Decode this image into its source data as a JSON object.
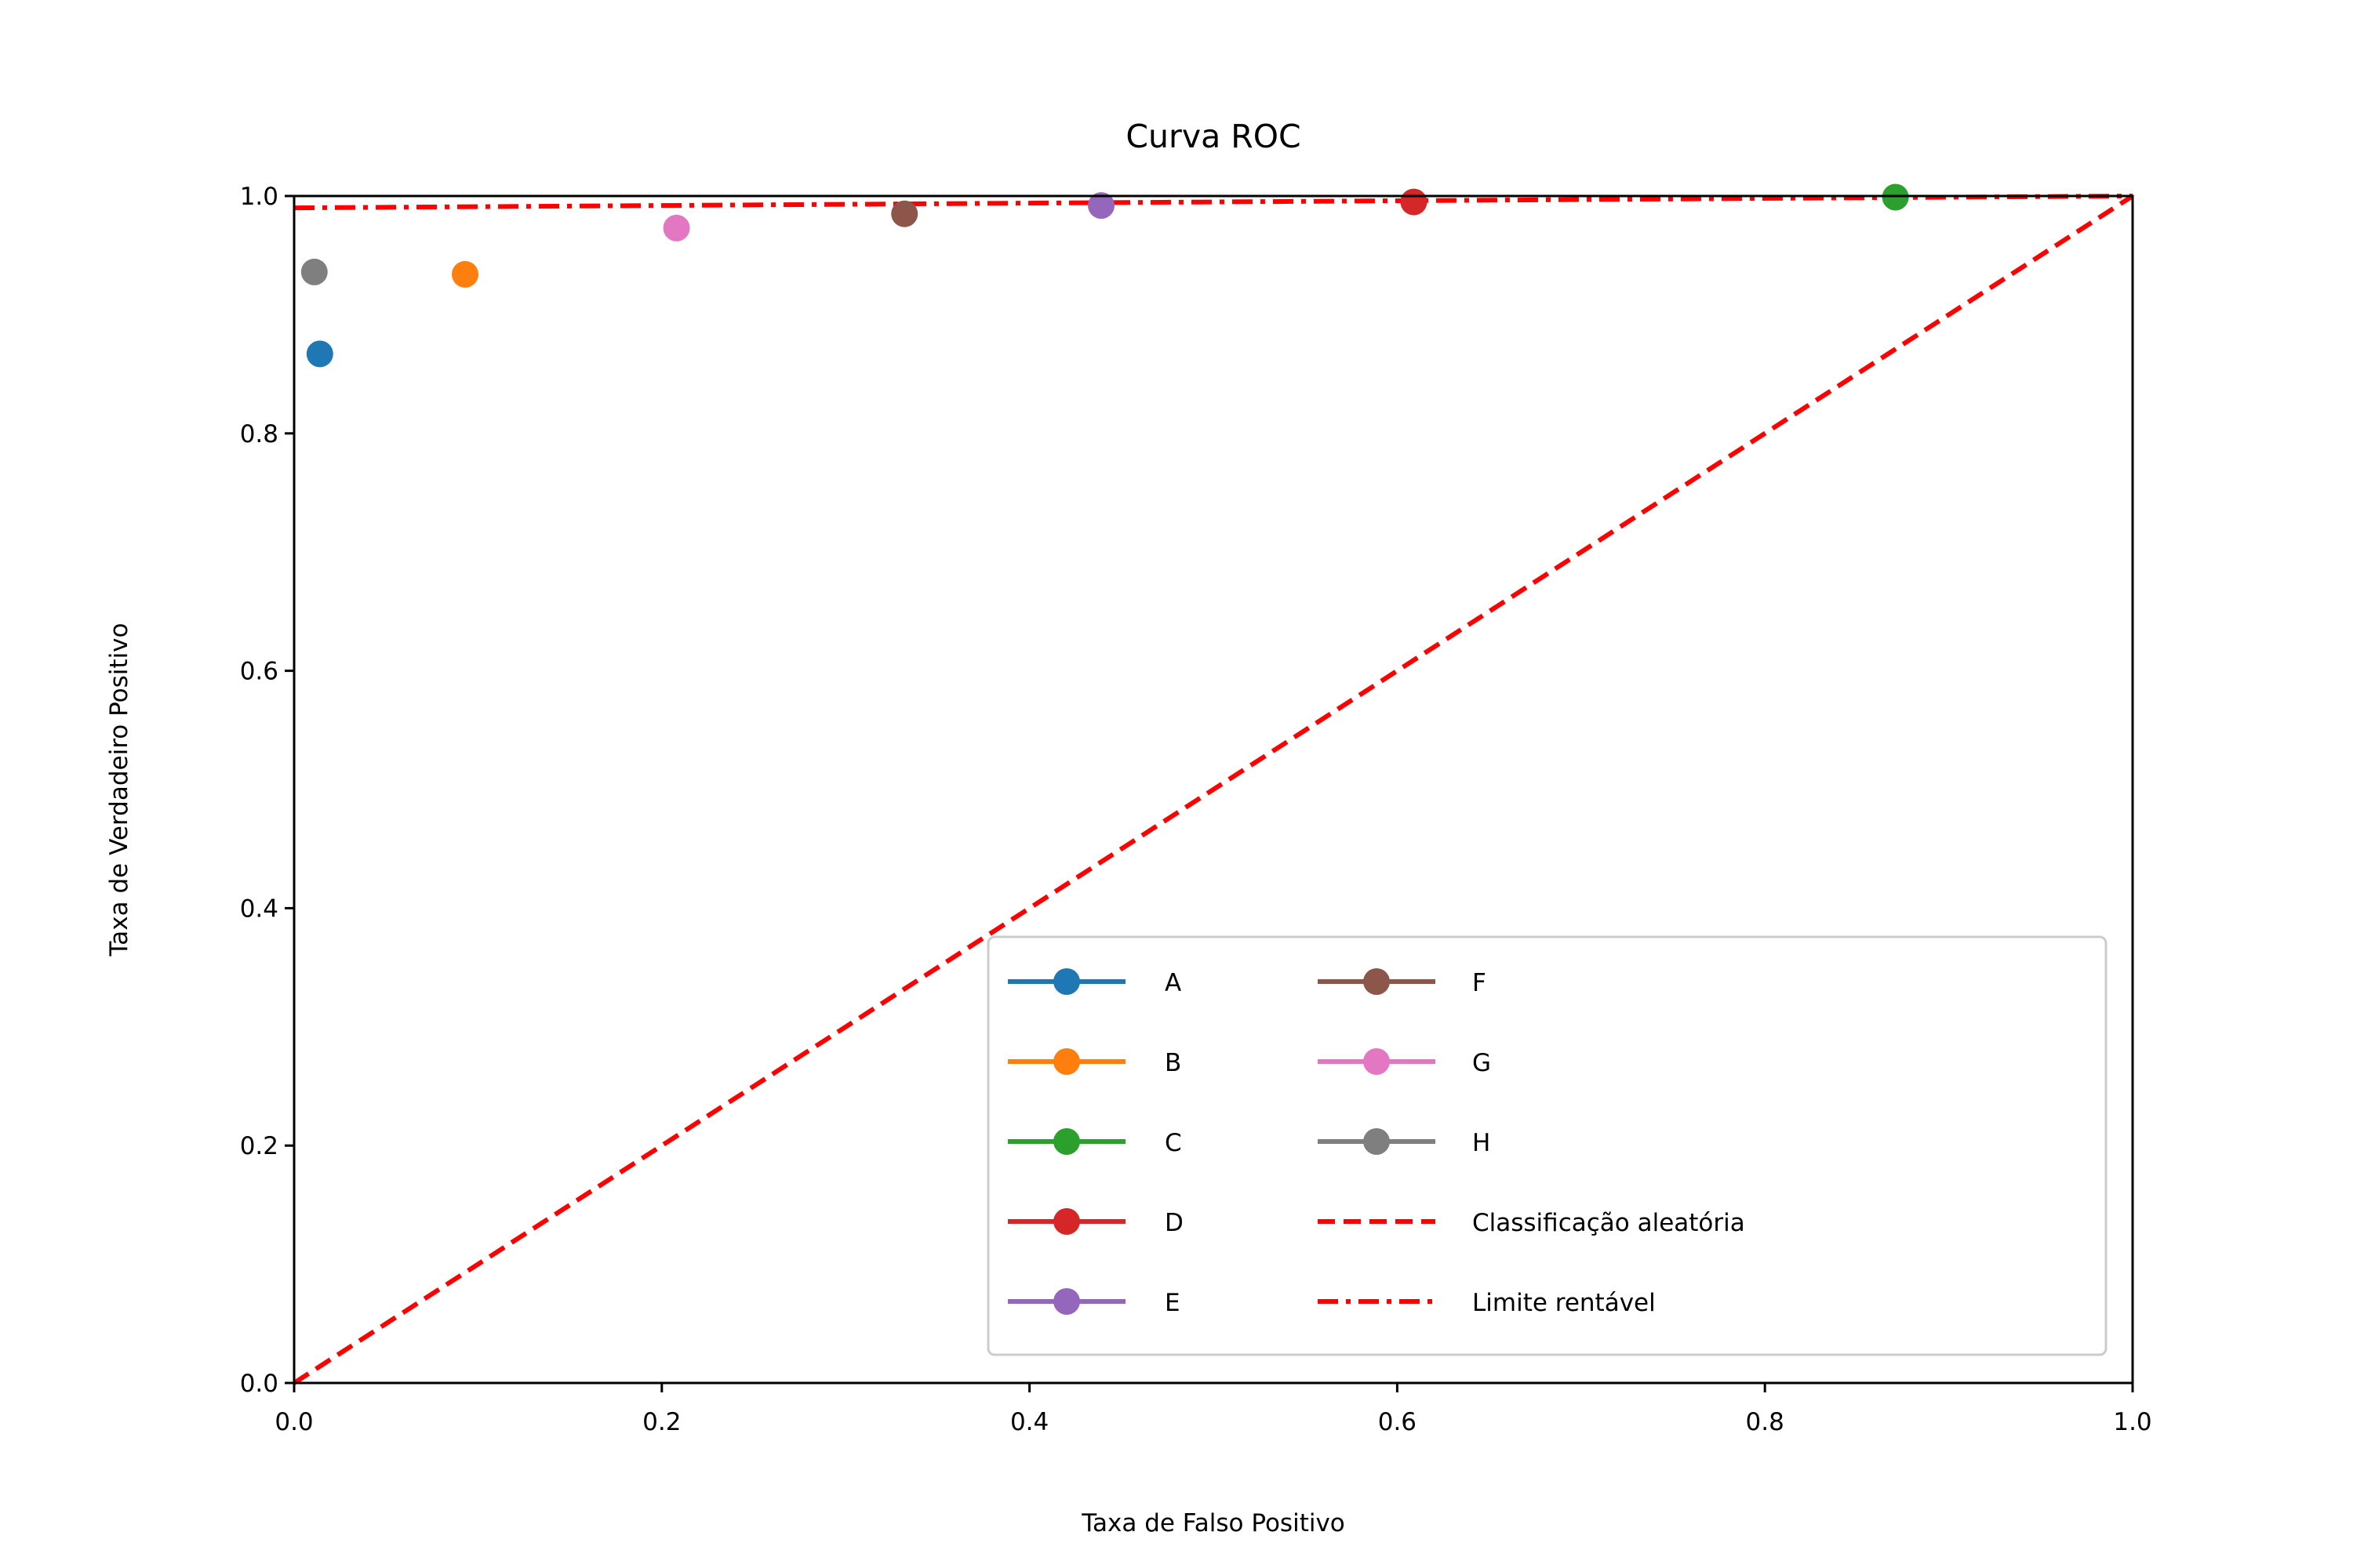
{
  "chart_data": {
    "type": "scatter",
    "title": "Curva ROC",
    "xlabel": "Taxa de Falso Positivo",
    "ylabel": "Taxa de Verdadeiro Positivo",
    "xlim": [
      0.0,
      1.0
    ],
    "ylim": [
      0.0,
      1.0
    ],
    "xticks": [
      "0.0",
      "0.2",
      "0.4",
      "0.6",
      "0.8",
      "1.0"
    ],
    "yticks": [
      "0.0",
      "0.2",
      "0.4",
      "0.6",
      "0.8",
      "1.0"
    ],
    "grid": false,
    "legend_position": "lower-right",
    "series": [
      {
        "name": "A",
        "color": "#1f77b4",
        "x": 0.014,
        "y": 0.867
      },
      {
        "name": "B",
        "color": "#ff7f0e",
        "x": 0.093,
        "y": 0.934
      },
      {
        "name": "C",
        "color": "#2ca02c",
        "x": 0.871,
        "y": 0.999
      },
      {
        "name": "D",
        "color": "#d62728",
        "x": 0.609,
        "y": 0.995
      },
      {
        "name": "E",
        "color": "#9467bd",
        "x": 0.439,
        "y": 0.992
      },
      {
        "name": "F",
        "color": "#8c564b",
        "x": 0.332,
        "y": 0.985
      },
      {
        "name": "G",
        "color": "#e377c2",
        "x": 0.208,
        "y": 0.973
      },
      {
        "name": "H",
        "color": "#7f7f7f",
        "x": 0.011,
        "y": 0.936
      }
    ],
    "reference_lines": [
      {
        "name": "Classificação aleatória",
        "style": "dashed",
        "color": "#ff0000",
        "x": [
          0.0,
          1.0
        ],
        "y": [
          0.0,
          1.0
        ]
      },
      {
        "name": "Limite rentável",
        "style": "dashdot",
        "color": "#ff0000",
        "x": [
          0.0,
          1.0
        ],
        "y": [
          0.99,
          1.0
        ]
      }
    ]
  }
}
